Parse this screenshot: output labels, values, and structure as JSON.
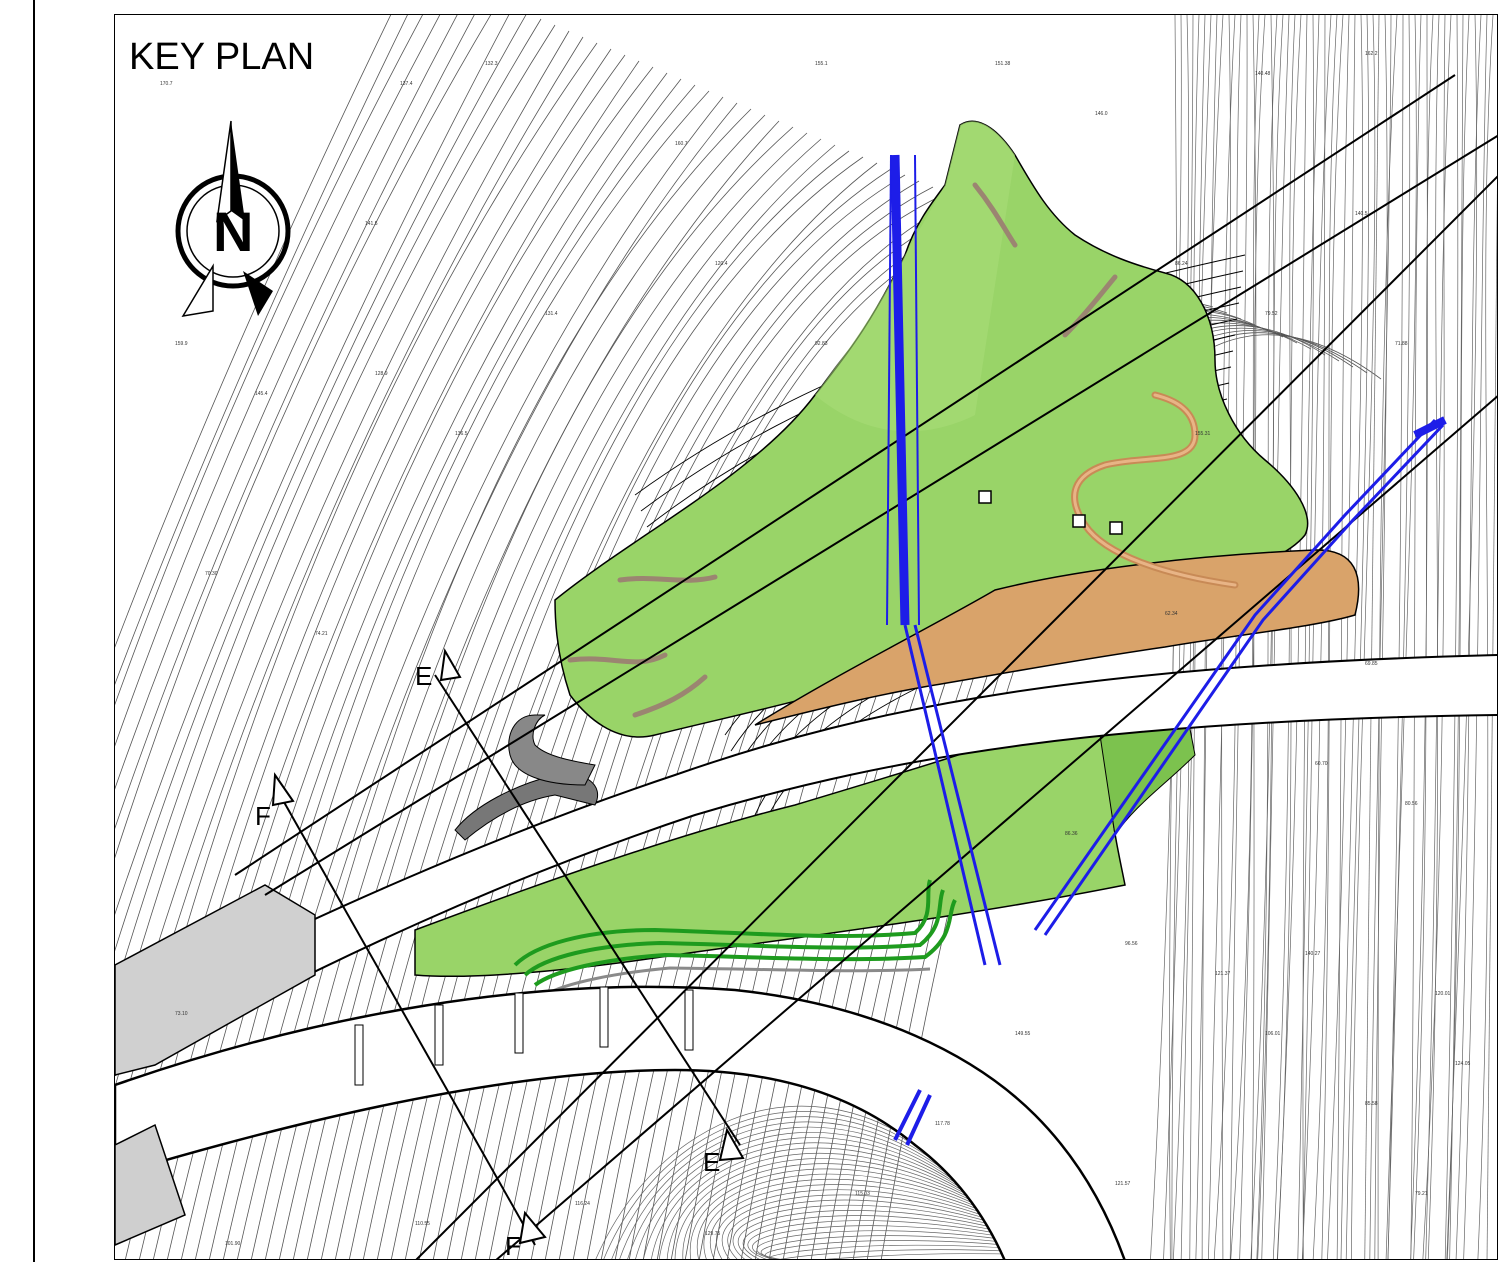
{
  "title": "KEY PLAN",
  "north_arrow": {
    "icon": "north-arrow-icon",
    "letter": "N"
  },
  "sections": [
    {
      "id": "E",
      "label_a": "E",
      "label_b": "E"
    },
    {
      "id": "F",
      "label_a": "F",
      "label_b": "F"
    }
  ],
  "colors": {
    "terrain_green": "#99d468",
    "slope_green_dark": "#1e9b1e",
    "platform_tan": "#d9a36a",
    "path_brown": "#9b8571",
    "pipeline_blue": "#1d1de8",
    "contour": "#555555"
  },
  "elevations": [
    "170.7",
    "137.4",
    "128.8",
    "132.3",
    "141.5",
    "160.7",
    "155.1",
    "151.38",
    "146.0",
    "140.48",
    "162.2",
    "140.5",
    "159.9",
    "145.4",
    "128.9",
    "136.5",
    "131.4",
    "120.4",
    "92.83",
    "86.24",
    "79.52",
    "71.88",
    "70.30",
    "74.21",
    "62.34",
    "69.85",
    "60.70",
    "80.56",
    "86.36",
    "96.56",
    "121.37",
    "106.01",
    "85.58",
    "79.21",
    "73.10",
    "101.90",
    "110.55",
    "116.24",
    "129.75",
    "115.03",
    "117.78",
    "121.57",
    "149.55",
    "140.27",
    "120.01",
    "124.05",
    "155.31"
  ],
  "labels": {
    "north": "N"
  }
}
